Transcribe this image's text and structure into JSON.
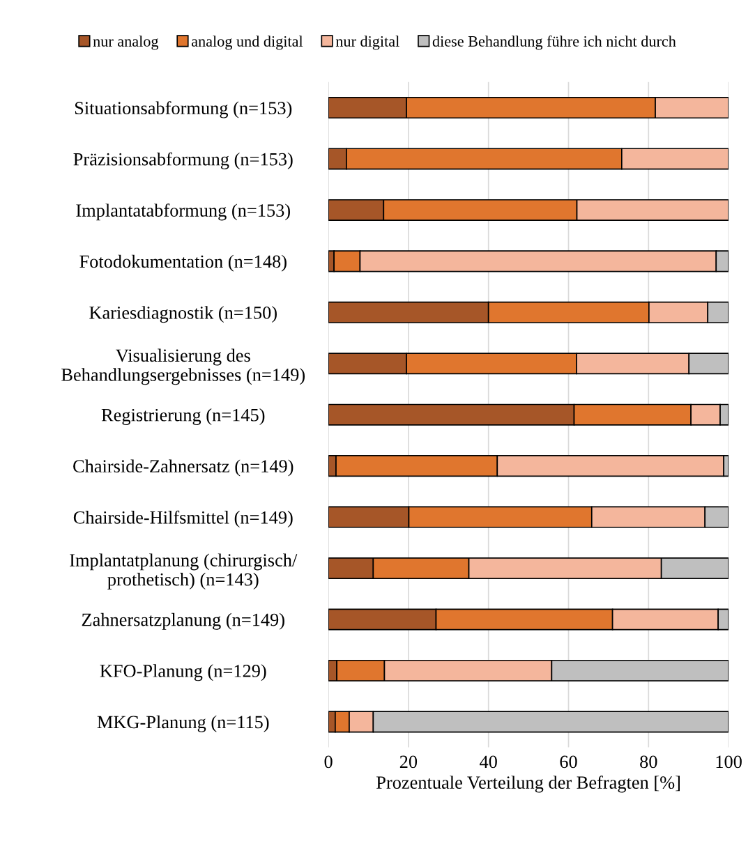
{
  "chart_data": {
    "type": "bar",
    "orientation": "horizontal",
    "stacked": true,
    "xlabel": "Prozentuale Verteilung der Befragten [%]",
    "categories": [
      "Situationsabformung (n=153)",
      "Präzisionsabformung (n=153)",
      "Implantatabformung (n=153)",
      "Fotodokumentation (n=148)",
      "Kariesdiagnostik (n=150)",
      "Visualisierung des\nBehandlungsergebnisses (n=149)",
      "Registrierung (n=145)",
      "Chairside-Zahnersatz (n=149)",
      "Chairside-Hilfsmittel (n=149)",
      "Implantatplanung (chirurgisch/\nprothetisch) (n=143)",
      "Zahnersatzplanung (n=149)",
      "KFO-Planung (n=129)",
      "MKG-Planung (n=115)"
    ],
    "series": [
      {
        "name": "nur analog",
        "color": "#a65628",
        "values": [
          19.5,
          4.5,
          13.8,
          1.4,
          40.0,
          19.5,
          61.4,
          1.9,
          20.1,
          11.2,
          26.9,
          2.1,
          1.7
        ]
      },
      {
        "name": "analog und digital",
        "color": "#e0762e",
        "values": [
          62.2,
          68.8,
          48.3,
          6.5,
          40.1,
          42.5,
          29.2,
          40.3,
          45.7,
          23.9,
          44.1,
          11.9,
          3.5
        ]
      },
      {
        "name": "nur digital",
        "color": "#f4b69c",
        "values": [
          18.3,
          26.7,
          37.9,
          89.0,
          14.7,
          28.1,
          7.3,
          56.6,
          28.3,
          48.1,
          26.4,
          41.8,
          6.0
        ]
      },
      {
        "name": "diese Behandlung führe ich nicht durch",
        "color": "#bfbfbf",
        "values": [
          null,
          null,
          null,
          3.1,
          5.2,
          9.9,
          2.1,
          1.2,
          5.9,
          16.8,
          2.6,
          44.2,
          88.8
        ]
      }
    ],
    "xlim": [
      0,
      100
    ],
    "xticks": [
      0,
      20,
      40,
      60,
      80,
      100
    ],
    "grid": "x",
    "legend": "top"
  }
}
